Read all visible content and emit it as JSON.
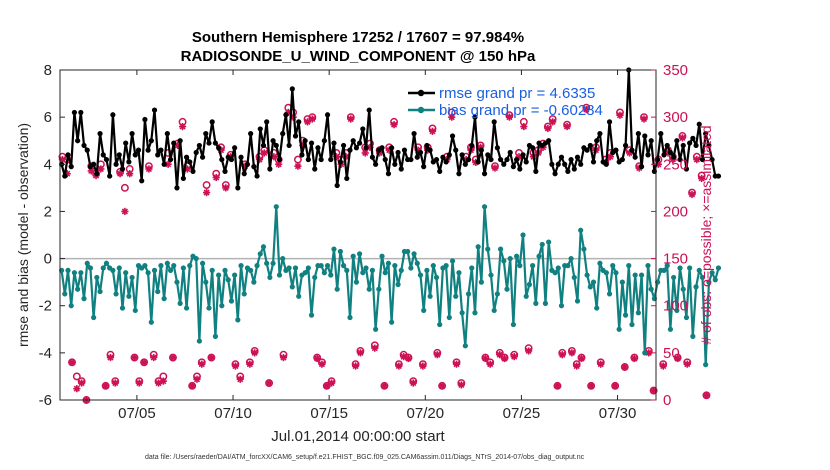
{
  "chart_data": {
    "type": "line",
    "title": "Southern Hemisphere 17252 / 17607 = 97.984%",
    "subtitle": "RADIOSONDE_U_WIND_COMPONENT @ 150 hPa",
    "xlabel": "Jul.01,2014 00:00:00 start",
    "ylabel_left": "rmse and bias (model - observation)",
    "ylabel_right": "# of obs: o=possible; ×=assimilated",
    "x_ticks": [
      "07/05",
      "07/10",
      "07/15",
      "07/20",
      "07/25",
      "07/30"
    ],
    "x_tick_days": [
      5,
      10,
      15,
      20,
      25,
      30
    ],
    "xlim": [
      1,
      32
    ],
    "ylim_left": [
      -6,
      8
    ],
    "ylim_right": [
      0,
      350
    ],
    "yticks_left": [
      "-6",
      "-4",
      "-2",
      "0",
      "2",
      "4",
      "6",
      "8"
    ],
    "yticks_right": [
      "0",
      "50",
      "100",
      "150",
      "200",
      "250",
      "300",
      "350"
    ],
    "colors": {
      "rmse": "#000000",
      "bias": "#108080",
      "obs": "#cc1155",
      "zero": "#b3b3b3",
      "legend_text": "#1a5fe0"
    },
    "series": [
      {
        "name": "rmse",
        "label": "rmse grand pr = 4.6335",
        "values": [
          4.0,
          3.5,
          4.4,
          3.9,
          6.2,
          5.0,
          6.2,
          4.8,
          4.6,
          3.9,
          4.0,
          3.6,
          5.3,
          4.4,
          4.2,
          3.5,
          6.1,
          4.0,
          4.4,
          3.8,
          4.9,
          4.1,
          5.3,
          4.4,
          4.6,
          3.3,
          5.9,
          4.6,
          5.0,
          6.3,
          4.4,
          4.6,
          4.0,
          5.3,
          4.2,
          4.9,
          3.0,
          5.0,
          3.4,
          4.3,
          4.1,
          3.7,
          4.5,
          4.8,
          4.3,
          5.3,
          4.9,
          5.8,
          4.9,
          4.7,
          4.2,
          3.7,
          4.3,
          4.2,
          4.7,
          3.0,
          4.3,
          3.6,
          4.0,
          5.3,
          3.9,
          3.5,
          5.5,
          4.8,
          5.8,
          3.8,
          5.0,
          4.8,
          4.2,
          5.3,
          6.1,
          4.8,
          7.2,
          5.2,
          5.8,
          4.4,
          5.0,
          4.2,
          4.9,
          3.8,
          4.7,
          4.2,
          5.0,
          6.1,
          4.2,
          4.9,
          3.1,
          4.1,
          4.8,
          3.4,
          4.6,
          5.0,
          4.7,
          4.9,
          5.5,
          4.7,
          6.3,
          4.3,
          4.0,
          4.6,
          4.7,
          4.2,
          3.6,
          4.7,
          4.0,
          4.5,
          3.8,
          4.6,
          4.2,
          4.2,
          5.3,
          4.3,
          4.5,
          3.9,
          4.8,
          4.6,
          4.1,
          4.2,
          3.7,
          4.3,
          4.1,
          4.4,
          5.2,
          4.6,
          3.6,
          4.4,
          4.0,
          4.2,
          4.8,
          6.0,
          4.1,
          4.6,
          3.6,
          4.4,
          4.2,
          5.8,
          4.7,
          4.2,
          4.0,
          4.2,
          4.5,
          3.9,
          4.2,
          3.8,
          4.4,
          4.1,
          4.8,
          4.7,
          3.7,
          4.9,
          4.8,
          4.9,
          5.0,
          4.0,
          3.6,
          4.0,
          4.3,
          4.0,
          3.7,
          4.2,
          3.8,
          4.3,
          4.0,
          4.7,
          4.6,
          4.8,
          4.1,
          5.0,
          5.3,
          4.1,
          4.0,
          5.8,
          4.5,
          4.6,
          4.1,
          4.2,
          4.8,
          8.0,
          4.6,
          4.3,
          5.3,
          3.9,
          5.2,
          4.4,
          5.0,
          3.7,
          4.2,
          5.3,
          4.4,
          4.8,
          4.5,
          4.3,
          5.0,
          4.2,
          4.8,
          3.8,
          4.9,
          5.1,
          4.8,
          5.7,
          4.2,
          5.3,
          4.8,
          4.2,
          3.5,
          3.5
        ],
        "points_per_day": 6
      },
      {
        "name": "bias",
        "label": "bias grand pr = -0.60284",
        "values": [
          -0.5,
          -1.5,
          -0.5,
          -2.0,
          -0.6,
          -1.3,
          -0.6,
          -1.7,
          -0.2,
          -0.4,
          -2.5,
          -0.8,
          -1.4,
          -0.4,
          -0.2,
          -0.4,
          -0.5,
          -1.5,
          -0.4,
          -2.1,
          -0.6,
          -1.6,
          -0.8,
          -2.2,
          -0.3,
          -0.4,
          -0.3,
          -0.6,
          -2.7,
          -0.5,
          -1.4,
          -0.3,
          -1.7,
          -0.2,
          -0.5,
          -0.3,
          -1.0,
          -1.9,
          -0.4,
          -2.1,
          -0.3,
          0.1,
          0.0,
          -3.5,
          -0.2,
          -1.0,
          -2.1,
          -0.5,
          -3.3,
          -0.7,
          -2.0,
          -0.5,
          -0.9,
          -1.8,
          -0.7,
          -2.6,
          -0.3,
          -1.5,
          -0.4,
          -0.5,
          -1.0,
          -0.3,
          0.2,
          0.5,
          -0.2,
          -0.8,
          -0.2,
          2.2,
          -0.7,
          0.0,
          -0.5,
          -0.4,
          -1.2,
          -0.4,
          -1.6,
          -0.7,
          -0.6,
          -0.4,
          -2.4,
          -0.8,
          -0.3,
          -0.3,
          -0.6,
          -0.3,
          -0.7,
          0.4,
          -1.3,
          0.3,
          -0.3,
          -0.5,
          -2.5,
          0.1,
          -1.0,
          0.2,
          -0.6,
          -0.4,
          -1.3,
          -0.5,
          -3.0,
          -1.3,
          0.1,
          -0.6,
          -0.2,
          -2.7,
          -0.3,
          -1.1,
          -0.5,
          0.3,
          0.3,
          -0.4,
          0.2,
          -0.2,
          -0.7,
          -2.2,
          -0.5,
          -1.6,
          -0.3,
          -0.8,
          -2.8,
          -0.4,
          -0.3,
          -2.5,
          -0.1,
          -1.6,
          -0.6,
          -2.3,
          -3.7,
          -1.5,
          -0.4,
          -2.3,
          0.5,
          -1.0,
          2.2,
          0.4,
          -0.7,
          -2.2,
          -1.5,
          0.4,
          -0.1,
          -1.3,
          0.0,
          -2.8,
          0.1,
          -0.3,
          1.0,
          -1.6,
          -1.1,
          -0.3,
          -1.9,
          0.1,
          0.6,
          -1.9,
          0.7,
          -0.5,
          -0.6,
          -0.4,
          -2.0,
          -0.3,
          -0.3,
          0.0,
          -0.8,
          -1.8,
          1.2,
          0.4,
          -0.7,
          -1.2,
          -1.0,
          -2.1,
          -0.2,
          -0.5,
          -0.6,
          -1.5,
          -0.3,
          -0.6,
          -3.0,
          -1.0,
          -2.4,
          -0.3,
          -2.8,
          -0.7,
          -2.3,
          -0.7,
          -4.0,
          -0.3,
          -1.3,
          -1.7,
          -1.0,
          -0.5,
          -0.5,
          -0.3,
          -3.0,
          -0.8,
          -2.2,
          -0.4,
          -1.3,
          -2.5,
          -0.4,
          -3.3,
          -1.2,
          -0.5,
          -0.8,
          -4.5,
          -1.0,
          -0.6,
          -0.9,
          -0.4
        ],
        "points_per_day": 6
      },
      {
        "name": "obs_possible",
        "marker": "o",
        "values": [
          258,
          255,
          40,
          25,
          20,
          0,
          248,
          240,
          250,
          15,
          48,
          20,
          242,
          225,
          245,
          45,
          20,
          40,
          248,
          48,
          20,
          25,
          262,
          45,
          272,
          295,
          248,
          15,
          25,
          40,
          228,
          45,
          240,
          268,
          228,
          260,
          38,
          25,
          250,
          40,
          52,
          258,
          265,
          18,
          262,
          255,
          48,
          310,
          305,
          255,
          275,
          298,
          300,
          45,
          40,
          15,
          20,
          262,
          255,
          262,
          300,
          38,
          52,
          268,
          272,
          58,
          265,
          15,
          268,
          295,
          38,
          48,
          45,
          20,
          268,
          38,
          268,
          288,
          50,
          15,
          258,
          305,
          40,
          18,
          258,
          268,
          255,
          270,
          45,
          40,
          248,
          50,
          45,
          302,
          48,
          262,
          295,
          55,
          262,
          265,
          272,
          290,
          298,
          15,
          50,
          292,
          52,
          38,
          45,
          310,
          15,
          268,
          40,
          255,
          262,
          15,
          305,
          35,
          265,
          45,
          248,
          300,
          52,
          10,
          255,
          38,
          265,
          258,
          45,
          280,
          40,
          220,
          258,
          238,
          5
        ],
        "points_per_day": 4
      },
      {
        "name": "obs_assimilated",
        "marker": "x",
        "values": [
          255,
          240,
          40,
          12,
          18,
          0,
          243,
          238,
          245,
          15,
          45,
          18,
          240,
          200,
          240,
          45,
          18,
          40,
          245,
          45,
          18,
          20,
          250,
          45,
          270,
          290,
          245,
          15,
          22,
          38,
          220,
          45,
          236,
          265,
          225,
          258,
          36,
          22,
          248,
          38,
          50,
          255,
          262,
          18,
          258,
          250,
          45,
          305,
          300,
          248,
          270,
          295,
          298,
          44,
          38,
          15,
          18,
          258,
          250,
          258,
          298,
          36,
          50,
          262,
          268,
          55,
          262,
          15,
          265,
          292,
          36,
          46,
          44,
          18,
          265,
          36,
          265,
          285,
          48,
          15,
          255,
          300,
          38,
          16,
          255,
          265,
          252,
          268,
          44,
          38,
          246,
          48,
          44,
          300,
          46,
          258,
          290,
          52,
          258,
          262,
          268,
          288,
          295,
          15,
          48,
          290,
          50,
          36,
          44,
          308,
          15,
          265,
          38,
          252,
          258,
          15,
          302,
          35,
          262,
          44,
          246,
          298,
          50,
          10,
          250,
          36,
          262,
          255,
          44,
          278,
          38,
          218,
          255,
          235,
          5
        ],
        "points_per_day": 4
      }
    ]
  },
  "footer": "data file: /Users/raeder/DAI/ATM_forcXX/CAM6_setup/f.e21.FHIST_BGC.f09_025.CAM6assim.011/Diags_NTrS_2014-07/obs_diag_output.nc"
}
